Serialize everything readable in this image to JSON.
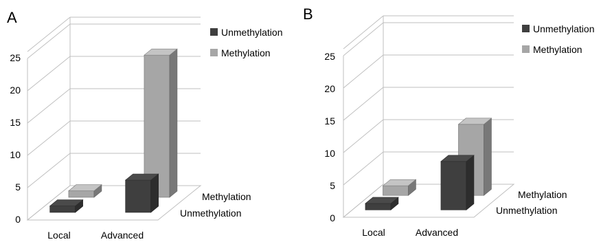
{
  "chart_data": [
    {
      "type": "bar",
      "panel_label": "A",
      "categories": [
        "Local",
        "Advanced"
      ],
      "depth_categories": [
        "Unmethylation",
        "Methylation"
      ],
      "series": [
        {
          "name": "Unmethylation",
          "values": [
            1,
            5
          ],
          "color": "#3f3f3f"
        },
        {
          "name": "Methylation",
          "values": [
            1,
            22
          ],
          "color": "#a6a6a6"
        }
      ],
      "yticks": [
        "0",
        "5",
        "10",
        "15",
        "20",
        "25"
      ],
      "ylim": [
        0,
        25
      ],
      "grid": true,
      "legend": "top-right"
    },
    {
      "type": "bar",
      "panel_label": "B",
      "categories": [
        "Local",
        "Advanced"
      ],
      "depth_categories": [
        "Unmethylation",
        "Methylation"
      ],
      "series": [
        {
          "name": "Unmethylation",
          "values": [
            1,
            7.5
          ],
          "color": "#3f3f3f"
        },
        {
          "name": "Methylation",
          "values": [
            1.5,
            11
          ],
          "color": "#a6a6a6"
        }
      ],
      "yticks": [
        "0",
        "5",
        "10",
        "15",
        "20",
        "25"
      ],
      "ylim": [
        0,
        25
      ],
      "grid": true,
      "legend": "top-right"
    }
  ]
}
